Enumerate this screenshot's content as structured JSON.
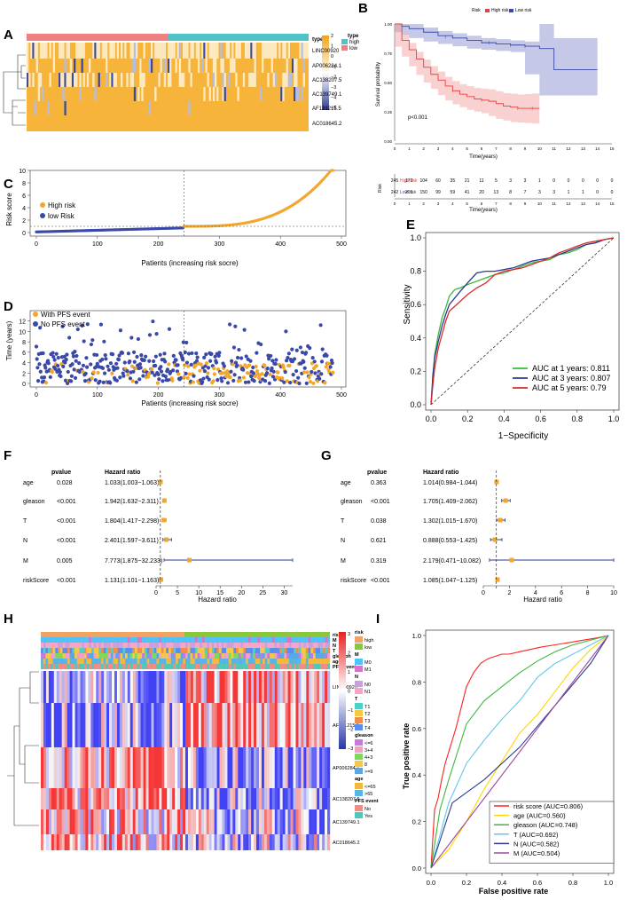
{
  "panel_letters": {
    "a": "A",
    "b": "B",
    "c": "C",
    "d": "D",
    "e": "E",
    "f": "F",
    "g": "G",
    "h": "H",
    "i": "I"
  },
  "colors": {
    "high": "#f3a447",
    "low": "#3c4c9c",
    "teal": "#4fc3c8",
    "salmon": "#f08080",
    "red": "#e84040",
    "blue": "#3a49a7",
    "orange": "#f4a62a"
  },
  "chart_data": [
    {
      "id": "A",
      "type": "heatmap",
      "title": "",
      "annotation_label": "type",
      "legend_title": "type",
      "legend_items": [
        "high",
        "low"
      ],
      "scale_ticks": [
        "2",
        "1",
        "0",
        "−1",
        "−2",
        "−3",
        "−4",
        "−5"
      ],
      "rows": [
        "LINC00920",
        "AP006284.1",
        "AC138207.5",
        "AC139749.1",
        "AF131215.5",
        "AC018645.2"
      ]
    },
    {
      "id": "B",
      "type": "line",
      "title": "",
      "legend_label": "Risk",
      "legend_items": [
        "High risk",
        "Low risk"
      ],
      "xlabel": "Time(years)",
      "ylabel": "Survival probability",
      "xticks": [
        "0",
        "1",
        "2",
        "3",
        "4",
        "5",
        "6",
        "7",
        "8",
        "9",
        "10",
        "11",
        "12",
        "13",
        "14",
        "15"
      ],
      "yticks": [
        "1.00",
        "0.75",
        "0.50",
        "0.25",
        "0.00"
      ],
      "xlim": [
        0,
        15
      ],
      "ylim": [
        0,
        1
      ],
      "pvalue_text": "p<0.001",
      "series": [
        {
          "name": "High risk",
          "x": [
            0,
            0.5,
            1,
            1.5,
            2,
            2.5,
            3,
            3.5,
            4,
            4.5,
            5,
            5.5,
            6,
            6.5,
            7,
            7.5,
            8,
            8.5,
            9,
            9.5,
            10
          ],
          "values": [
            1,
            0.86,
            0.78,
            0.7,
            0.63,
            0.57,
            0.52,
            0.47,
            0.43,
            0.4,
            0.38,
            0.36,
            0.35,
            0.34,
            0.32,
            0.3,
            0.29,
            0.28,
            0.28,
            0.28,
            0.28
          ]
        },
        {
          "name": "Low risk",
          "x": [
            0,
            0.5,
            1,
            2,
            3,
            4,
            5,
            6,
            7,
            8,
            9,
            10,
            11,
            12,
            13,
            14
          ],
          "values": [
            1,
            0.98,
            0.96,
            0.93,
            0.9,
            0.88,
            0.86,
            0.84,
            0.83,
            0.82,
            0.81,
            0.79,
            0.61,
            0.61,
            0.61,
            0.61
          ]
        }
      ],
      "risk_table": {
        "title": "Risk",
        "rows": [
          {
            "name": "High risk",
            "values": [
              "245",
              "170",
              "104",
              "60",
              "35",
              "21",
              "11",
              "5",
              "3",
              "3",
              "1",
              "0",
              "0",
              "0",
              "0",
              "0"
            ]
          },
          {
            "name": "Low risk",
            "values": [
              "242",
              "201",
              "150",
              "99",
              "59",
              "41",
              "20",
              "13",
              "8",
              "7",
              "3",
              "3",
              "1",
              "1",
              "0",
              "0"
            ]
          }
        ],
        "xticks": [
          "0",
          "1",
          "2",
          "3",
          "4",
          "5",
          "6",
          "7",
          "8",
          "9",
          "10",
          "11",
          "12",
          "13",
          "14",
          "15"
        ],
        "xlabel": "Time(years)"
      }
    },
    {
      "id": "C",
      "type": "scatter",
      "xlabel": "Patients (increasing risk socre)",
      "ylabel": "Risk score",
      "xticks": [
        "0",
        "100",
        "200",
        "300",
        "400",
        "500"
      ],
      "yticks": [
        "0",
        "2",
        "4",
        "6",
        "8",
        "10"
      ],
      "xlim": [
        0,
        500
      ],
      "ylim": [
        0,
        10
      ],
      "cutoff_x": 242,
      "cutoff_y": 1,
      "legend": [
        "High risk",
        "low Risk"
      ],
      "n_low": 242,
      "n_high": 245
    },
    {
      "id": "D",
      "type": "scatter",
      "xlabel": "Patients (increasing risk socre)",
      "ylabel": "Time (years)",
      "xticks": [
        "0",
        "100",
        "200",
        "300",
        "400",
        "500"
      ],
      "yticks": [
        "0",
        "2",
        "4",
        "6",
        "8",
        "10",
        "12"
      ],
      "xlim": [
        0,
        500
      ],
      "ylim": [
        0,
        14
      ],
      "cutoff_x": 242,
      "legend": [
        "With PFS event",
        "No PFS event"
      ]
    },
    {
      "id": "E",
      "type": "line",
      "xlabel": "1−Specificity",
      "ylabel": "Sensitivity",
      "xticks": [
        "0.0",
        "0.2",
        "0.4",
        "0.6",
        "0.8",
        "1.0"
      ],
      "yticks": [
        "0.0",
        "0.2",
        "0.4",
        "0.6",
        "0.8",
        "1.0"
      ],
      "xlim": [
        0,
        1
      ],
      "ylim": [
        0,
        1
      ],
      "series": [
        {
          "name": "AUC at 1 years: 0.811",
          "color": "#3cb93c",
          "x": [
            0,
            0.01,
            0.02,
            0.04,
            0.06,
            0.08,
            0.1,
            0.13,
            0.16,
            0.2,
            0.25,
            0.3,
            0.35,
            0.4,
            0.45,
            0.5,
            0.55,
            0.6,
            0.65,
            0.7,
            0.75,
            0.8,
            0.85,
            0.9,
            0.95,
            1.0
          ],
          "values": [
            0,
            0.15,
            0.3,
            0.42,
            0.52,
            0.58,
            0.65,
            0.69,
            0.7,
            0.72,
            0.74,
            0.76,
            0.78,
            0.79,
            0.81,
            0.83,
            0.85,
            0.86,
            0.87,
            0.9,
            0.91,
            0.93,
            0.96,
            0.97,
            0.99,
            1.0
          ]
        },
        {
          "name": "AUC at 3 years: 0.807",
          "color": "#2b3a8f",
          "x": [
            0,
            0.01,
            0.02,
            0.04,
            0.06,
            0.08,
            0.1,
            0.13,
            0.16,
            0.2,
            0.25,
            0.3,
            0.35,
            0.4,
            0.45,
            0.5,
            0.55,
            0.6,
            0.65,
            0.7,
            0.75,
            0.8,
            0.85,
            0.9,
            0.95,
            1.0
          ],
          "values": [
            0,
            0.18,
            0.28,
            0.38,
            0.47,
            0.54,
            0.6,
            0.64,
            0.68,
            0.73,
            0.79,
            0.8,
            0.8,
            0.81,
            0.82,
            0.84,
            0.86,
            0.87,
            0.88,
            0.9,
            0.92,
            0.94,
            0.96,
            0.97,
            0.99,
            1.0
          ]
        },
        {
          "name": "AUC at 5 years: 0.79",
          "color": "#d92b2b",
          "x": [
            0,
            0.01,
            0.02,
            0.04,
            0.06,
            0.08,
            0.1,
            0.13,
            0.16,
            0.2,
            0.25,
            0.3,
            0.35,
            0.4,
            0.45,
            0.5,
            0.55,
            0.6,
            0.65,
            0.7,
            0.75,
            0.8,
            0.85,
            0.9,
            0.95,
            1.0
          ],
          "values": [
            0,
            0.12,
            0.22,
            0.34,
            0.42,
            0.5,
            0.56,
            0.59,
            0.62,
            0.66,
            0.7,
            0.73,
            0.78,
            0.8,
            0.81,
            0.82,
            0.84,
            0.86,
            0.88,
            0.91,
            0.93,
            0.95,
            0.97,
            0.98,
            0.99,
            1.0
          ]
        }
      ]
    },
    {
      "id": "F",
      "type": "scatter",
      "subtype": "forest",
      "col_pvalue": "pvalue",
      "col_hr": "Hazard ratio",
      "xlabel": "Hazard ratio",
      "xticks": [
        "0",
        "5",
        "10",
        "15",
        "20",
        "25",
        "30"
      ],
      "xlim": [
        0,
        32
      ],
      "rows": [
        {
          "name": "age",
          "pvalue": "0.028",
          "hr_text": "1.033(1.003−1.063)",
          "hr": 1.033,
          "lo": 1.003,
          "hi": 1.063
        },
        {
          "name": "gleason",
          "pvalue": "<0.001",
          "hr_text": "1.942(1.632−2.311)",
          "hr": 1.942,
          "lo": 1.632,
          "hi": 2.311
        },
        {
          "name": "T",
          "pvalue": "<0.001",
          "hr_text": "1.804(1.417−2.298)",
          "hr": 1.804,
          "lo": 1.417,
          "hi": 2.298
        },
        {
          "name": "N",
          "pvalue": "<0.001",
          "hr_text": "2.401(1.597−3.611)",
          "hr": 2.401,
          "lo": 1.597,
          "hi": 3.611
        },
        {
          "name": "M",
          "pvalue": "0.005",
          "hr_text": "7.773(1.875−32.233)",
          "hr": 7.773,
          "lo": 1.875,
          "hi": 32.233
        },
        {
          "name": "riskScore",
          "pvalue": "<0.001",
          "hr_text": "1.131(1.101−1.163)",
          "hr": 1.131,
          "lo": 1.101,
          "hi": 1.163
        }
      ]
    },
    {
      "id": "G",
      "type": "scatter",
      "subtype": "forest",
      "col_pvalue": "pvalue",
      "col_hr": "Hazard ratio",
      "xlabel": "Hazard ratio",
      "xticks": [
        "0",
        "2",
        "4",
        "6",
        "8",
        "10"
      ],
      "xlim": [
        0,
        10
      ],
      "rows": [
        {
          "name": "age",
          "pvalue": "0.363",
          "hr_text": "1.014(0.984−1.044)",
          "hr": 1.014,
          "lo": 0.984,
          "hi": 1.044
        },
        {
          "name": "gleason",
          "pvalue": "<0.001",
          "hr_text": "1.705(1.409−2.062)",
          "hr": 1.705,
          "lo": 1.409,
          "hi": 2.062
        },
        {
          "name": "T",
          "pvalue": "0.038",
          "hr_text": "1.302(1.015−1.670)",
          "hr": 1.302,
          "lo": 1.015,
          "hi": 1.67
        },
        {
          "name": "N",
          "pvalue": "0.621",
          "hr_text": "0.888(0.553−1.425)",
          "hr": 0.888,
          "lo": 0.553,
          "hi": 1.425
        },
        {
          "name": "M",
          "pvalue": "0.319",
          "hr_text": "2.179(0.471−10.082)",
          "hr": 2.179,
          "lo": 0.471,
          "hi": 10.082
        },
        {
          "name": "riskScore",
          "pvalue": "<0.001",
          "hr_text": "1.085(1.047−1.125)",
          "hr": 1.085,
          "lo": 1.047,
          "hi": 1.125
        }
      ]
    },
    {
      "id": "H",
      "type": "heatmap",
      "annotation_rows": [
        "risk",
        "M",
        "N",
        "T",
        "gleason",
        "age",
        "PFS event"
      ],
      "rows": [
        "LINC00920",
        "AF131215.5",
        "AP006284.1",
        "AC138207.5",
        "AC139749.1",
        "AC018645.2"
      ],
      "scale_ticks": [
        "3",
        "2",
        "1",
        "0",
        "−1",
        "−2",
        "−3"
      ],
      "legend_groups": [
        {
          "title": "risk",
          "items": [
            {
              "label": "high",
              "color": "#f4a261"
            },
            {
              "label": "low",
              "color": "#8cc63f"
            }
          ]
        },
        {
          "title": "M",
          "items": [
            {
              "label": "M0",
              "color": "#4fc3f7"
            },
            {
              "label": "M1",
              "color": "#d873c8"
            }
          ]
        },
        {
          "title": "N",
          "items": [
            {
              "label": "N0",
              "color": "#c9a0dc"
            },
            {
              "label": "N1",
              "color": "#f4a6c8"
            }
          ]
        },
        {
          "title": "T",
          "items": [
            {
              "label": "T1",
              "color": "#4dd0c8"
            },
            {
              "label": "T2",
              "color": "#f6c744"
            },
            {
              "label": "T3",
              "color": "#f08f4c"
            },
            {
              "label": "T4",
              "color": "#5b8def"
            }
          ]
        },
        {
          "title": "gleason",
          "items": [
            {
              "label": "<=6",
              "color": "#c678dd"
            },
            {
              "label": "3+4",
              "color": "#f29fc7"
            },
            {
              "label": "4+3",
              "color": "#7ed957"
            },
            {
              "label": "8",
              "color": "#f3c74a"
            },
            {
              "label": ">=9",
              "color": "#56a8e8"
            }
          ]
        },
        {
          "title": "age",
          "items": [
            {
              "label": "<=65",
              "color": "#f2b93b"
            },
            {
              "label": ">65",
              "color": "#58b4e8"
            }
          ]
        },
        {
          "title": "PFS event",
          "items": [
            {
              "label": "No",
              "color": "#f28b82"
            },
            {
              "label": "Yes",
              "color": "#4fc8b8"
            }
          ]
        }
      ]
    },
    {
      "id": "I",
      "type": "line",
      "xlabel": "False positive rate",
      "ylabel": "True positive rate",
      "xticks": [
        "0.0",
        "0.2",
        "0.4",
        "0.6",
        "0.8",
        "1.0"
      ],
      "yticks": [
        "0.0",
        "0.2",
        "0.4",
        "0.6",
        "0.8",
        "1.0"
      ],
      "xlim": [
        0,
        1
      ],
      "ylim": [
        0,
        1
      ],
      "series": [
        {
          "name": "risk score (AUC=0.806)",
          "color": "#ff2020",
          "x": [
            0,
            0.02,
            0.04,
            0.06,
            0.08,
            0.1,
            0.12,
            0.14,
            0.16,
            0.18,
            0.2,
            0.24,
            0.28,
            0.32,
            0.36,
            0.4,
            0.44,
            0.5,
            0.56,
            0.62,
            0.7,
            0.78,
            0.86,
            0.94,
            1.0
          ],
          "values": [
            0,
            0.25,
            0.3,
            0.38,
            0.45,
            0.5,
            0.55,
            0.6,
            0.66,
            0.72,
            0.78,
            0.84,
            0.88,
            0.9,
            0.91,
            0.92,
            0.92,
            0.93,
            0.94,
            0.95,
            0.96,
            0.97,
            0.98,
            0.99,
            1.0
          ]
        },
        {
          "name": "age (AUC=0.560)",
          "color": "#ffd700",
          "x": [
            0,
            0.1,
            0.2,
            0.3,
            0.4,
            0.5,
            0.6,
            0.7,
            0.8,
            0.9,
            1.0
          ],
          "values": [
            0,
            0.08,
            0.2,
            0.34,
            0.46,
            0.58,
            0.66,
            0.76,
            0.86,
            0.94,
            1.0
          ]
        },
        {
          "name": "gleason (AUC=0.748)",
          "color": "#3cb93c",
          "x": [
            0,
            0.05,
            0.1,
            0.15,
            0.2,
            0.3,
            0.4,
            0.5,
            0.6,
            0.7,
            0.8,
            1.0
          ],
          "values": [
            0,
            0.25,
            0.38,
            0.5,
            0.62,
            0.72,
            0.78,
            0.84,
            0.89,
            0.93,
            0.96,
            1.0
          ]
        },
        {
          "name": "T (AUC=0.692)",
          "color": "#63c8e8",
          "x": [
            0,
            0.1,
            0.2,
            0.3,
            0.4,
            0.5,
            0.6,
            0.7,
            0.8,
            0.9,
            1.0
          ],
          "values": [
            0,
            0.28,
            0.45,
            0.55,
            0.64,
            0.72,
            0.82,
            0.88,
            0.92,
            0.96,
            1.0
          ]
        },
        {
          "name": "N (AUC=0.582)",
          "color": "#2b3a8f",
          "x": [
            0,
            0.12,
            0.3,
            0.5,
            0.7,
            0.9,
            1.0
          ],
          "values": [
            0,
            0.28,
            0.38,
            0.52,
            0.7,
            0.88,
            1.0
          ]
        },
        {
          "name": "M (AUC=0.504)",
          "color": "#9c4da0",
          "x": [
            0,
            1.0
          ],
          "values": [
            0,
            1.0
          ]
        }
      ]
    }
  ]
}
